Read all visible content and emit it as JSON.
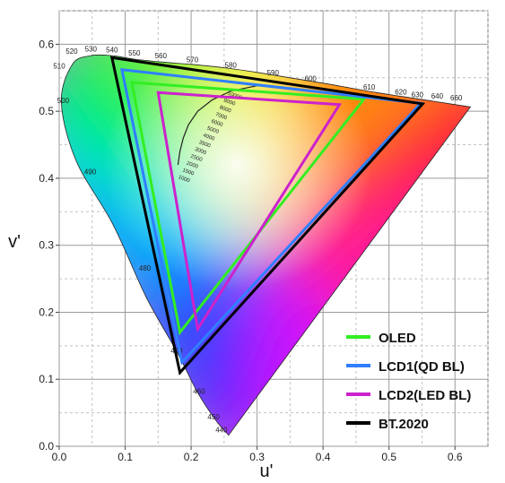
{
  "chart_data": {
    "type": "scatter",
    "title": "",
    "xlabel": "u'",
    "ylabel": "v'",
    "xlim": [
      0.0,
      0.65
    ],
    "ylim": [
      0.0,
      0.65
    ],
    "x_ticks": [
      "0.0",
      "0.1",
      "0.2",
      "0.3",
      "0.4",
      "0.5",
      "0.6"
    ],
    "y_ticks": [
      "0.0",
      "0.1",
      "0.2",
      "0.3",
      "0.4",
      "0.5",
      "0.6"
    ],
    "grid": true,
    "legend_position": "bottom-right",
    "spectral_locus": [
      [
        0.2568,
        0.0165
      ],
      [
        0.2374,
        0.0388
      ],
      [
        0.21,
        0.08
      ],
      [
        0.1791,
        0.1397
      ],
      [
        0.1322,
        0.2219
      ],
      [
        0.0815,
        0.3311
      ],
      [
        0.026,
        0.4255
      ],
      [
        0.0032,
        0.5133
      ],
      [
        0.02,
        0.57
      ],
      [
        0.048,
        0.583
      ],
      [
        0.08,
        0.583
      ],
      [
        0.1124,
        0.5779
      ],
      [
        0.1546,
        0.5735
      ],
      [
        0.2,
        0.57
      ],
      [
        0.25,
        0.565
      ],
      [
        0.3,
        0.558
      ],
      [
        0.35,
        0.55
      ],
      [
        0.4,
        0.542
      ],
      [
        0.44,
        0.535
      ],
      [
        0.48,
        0.528
      ],
      [
        0.52,
        0.522
      ],
      [
        0.56,
        0.516
      ],
      [
        0.6,
        0.51
      ],
      [
        0.6234,
        0.5065
      ]
    ],
    "wavelength_labels": [
      {
        "label": "440",
        "u": 0.246,
        "v": 0.021
      },
      {
        "label": "450",
        "u": 0.234,
        "v": 0.04
      },
      {
        "label": "460",
        "u": 0.212,
        "v": 0.078
      },
      {
        "label": "470",
        "u": 0.178,
        "v": 0.139
      },
      {
        "label": "480",
        "u": 0.13,
        "v": 0.262
      },
      {
        "label": "490",
        "u": 0.047,
        "v": 0.406
      },
      {
        "label": "500",
        "u": 0.006,
        "v": 0.512
      },
      {
        "label": "510",
        "u": 0.0,
        "v": 0.564
      },
      {
        "label": "520",
        "u": 0.019,
        "v": 0.586
      },
      {
        "label": "530",
        "u": 0.048,
        "v": 0.589
      },
      {
        "label": "540",
        "u": 0.08,
        "v": 0.588
      },
      {
        "label": "550",
        "u": 0.114,
        "v": 0.583
      },
      {
        "label": "560",
        "u": 0.154,
        "v": 0.579
      },
      {
        "label": "570",
        "u": 0.202,
        "v": 0.573
      },
      {
        "label": "580",
        "u": 0.26,
        "v": 0.565
      },
      {
        "label": "590",
        "u": 0.324,
        "v": 0.554
      },
      {
        "label": "600",
        "u": 0.381,
        "v": 0.545
      },
      {
        "label": "610",
        "u": 0.47,
        "v": 0.532
      },
      {
        "label": "620",
        "u": 0.518,
        "v": 0.525
      },
      {
        "label": "630",
        "u": 0.543,
        "v": 0.521
      },
      {
        "label": "640",
        "u": 0.573,
        "v": 0.519
      },
      {
        "label": "660",
        "u": 0.602,
        "v": 0.516
      }
    ],
    "planckian_locus": [
      [
        0.18,
        0.42
      ],
      [
        0.183,
        0.44
      ],
      [
        0.188,
        0.46
      ],
      [
        0.196,
        0.48
      ],
      [
        0.21,
        0.5
      ],
      [
        0.232,
        0.517
      ],
      [
        0.26,
        0.53
      ],
      [
        0.3,
        0.538
      ]
    ],
    "cct_labels": [
      "10000",
      "9000",
      "8000",
      "7000",
      "6000",
      "5000",
      "4000",
      "3500",
      "3000",
      "2500",
      "2000",
      "1500",
      "1000"
    ],
    "series": [
      {
        "name": "OLED",
        "color": "#33ee22",
        "points": [
          [
            0.11,
            0.543
          ],
          [
            0.462,
            0.518
          ],
          [
            0.183,
            0.17
          ]
        ]
      },
      {
        "name": "LCD1(QD BL)",
        "color": "#2f7fff",
        "points": [
          [
            0.095,
            0.562
          ],
          [
            0.548,
            0.512
          ],
          [
            0.186,
            0.125
          ]
        ]
      },
      {
        "name": "LCD2(LED BL)",
        "color": "#cc22cc",
        "points": [
          [
            0.15,
            0.528
          ],
          [
            0.425,
            0.51
          ],
          [
            0.21,
            0.175
          ]
        ]
      },
      {
        "name": "BT.2020",
        "color": "#000000",
        "points": [
          [
            0.08,
            0.58
          ],
          [
            0.551,
            0.511
          ],
          [
            0.183,
            0.11
          ]
        ]
      }
    ]
  }
}
